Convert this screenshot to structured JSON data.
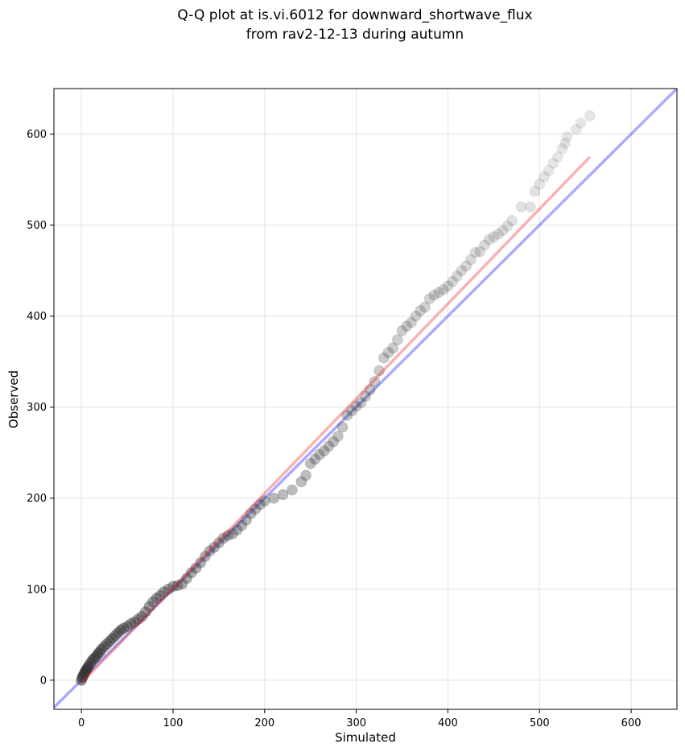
{
  "chart_data": {
    "type": "scatter",
    "title_lines": [
      "Q-Q plot at is.vi.6012 for downward_shortwave_flux",
      "from rav2-12-13 during autumn"
    ],
    "xlabel": "Simulated",
    "ylabel": "Observed",
    "xlim": [
      -30,
      650
    ],
    "ylim": [
      -32,
      650
    ],
    "xticks": [
      0,
      100,
      200,
      300,
      400,
      500,
      600
    ],
    "yticks": [
      0,
      100,
      200,
      300,
      400,
      500,
      600
    ],
    "grid": true,
    "colors": {
      "points": "#333333",
      "identity_line": "#0000ff",
      "fit_line": "#ee2222"
    },
    "identity_line": {
      "x": [
        -30,
        650
      ],
      "y": [
        -30,
        650
      ]
    },
    "fit_line": {
      "x": [
        0,
        555
      ],
      "y": [
        -3,
        575
      ]
    },
    "points": {
      "x": [
        0,
        1,
        2,
        3,
        4,
        5,
        6,
        7,
        8,
        10,
        12,
        14,
        16,
        18,
        20,
        22,
        25,
        28,
        31,
        34,
        37,
        40,
        43,
        46,
        50,
        54,
        58,
        62,
        66,
        70,
        74,
        78,
        82,
        86,
        90,
        95,
        100,
        105,
        110,
        115,
        120,
        125,
        130,
        135,
        140,
        145,
        150,
        155,
        160,
        165,
        170,
        175,
        180,
        185,
        190,
        195,
        200,
        210,
        220,
        230,
        240,
        245,
        250,
        255,
        260,
        265,
        270,
        275,
        280,
        285,
        290,
        295,
        300,
        305,
        310,
        315,
        320,
        325,
        330,
        335,
        340,
        345,
        350,
        355,
        360,
        365,
        370,
        375,
        380,
        385,
        390,
        395,
        400,
        405,
        410,
        415,
        420,
        425,
        430,
        435,
        440,
        445,
        450,
        455,
        460,
        465,
        470,
        480,
        490,
        495,
        500,
        505,
        510,
        515,
        520,
        525,
        528,
        530,
        540,
        545,
        555
      ],
      "y": [
        0,
        3,
        5,
        7,
        9,
        11,
        12,
        14,
        16,
        19,
        22,
        24,
        26,
        29,
        31,
        34,
        37,
        40,
        43,
        46,
        49,
        52,
        55,
        57,
        59,
        62,
        64,
        67,
        70,
        75,
        81,
        86,
        90,
        93,
        97,
        100,
        103,
        104,
        106,
        112,
        118,
        123,
        129,
        136,
        142,
        146,
        151,
        156,
        159,
        161,
        165,
        170,
        176,
        183,
        188,
        193,
        197,
        200,
        204,
        209,
        218,
        225,
        238,
        243,
        248,
        252,
        257,
        262,
        268,
        278,
        291,
        296,
        301,
        305,
        312,
        319,
        328,
        340,
        354,
        360,
        365,
        374,
        384,
        389,
        393,
        400,
        406,
        410,
        419,
        423,
        426,
        429,
        433,
        438,
        444,
        450,
        455,
        462,
        470,
        471,
        478,
        484,
        487,
        490,
        494,
        499,
        505,
        520,
        520,
        537,
        545,
        553,
        560,
        568,
        575,
        584,
        590,
        597,
        605,
        612,
        620
      ]
    }
  }
}
